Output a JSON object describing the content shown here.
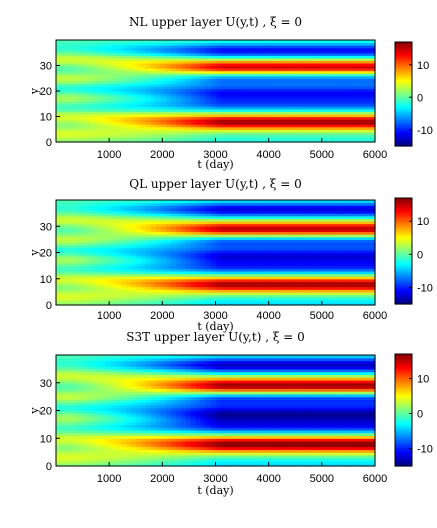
{
  "chart_data": [
    {
      "type": "heatmap",
      "title": "NL upper layer  U(y,t)  ,  ξ = 0",
      "xlabel": "t (day)",
      "ylabel": "y",
      "xlim": [
        0,
        6000
      ],
      "ylim": [
        0,
        40
      ],
      "xticks": [
        "1000",
        "2000",
        "3000",
        "4000",
        "5000",
        "6000"
      ],
      "yticks": [
        "0",
        "10",
        "20",
        "30"
      ],
      "clim": [
        -15,
        17
      ],
      "colorbar_ticks": [
        "10",
        "0",
        "-10"
      ],
      "colorbar_tick_values": [
        10,
        0,
        -10
      ],
      "jets_initial": [
        {
          "y": 3.5,
          "value": 6
        },
        {
          "y": 7,
          "value": -2
        },
        {
          "y": 10,
          "value": 7
        },
        {
          "y": 13.5,
          "value": -4
        },
        {
          "y": 17.5,
          "value": 5
        },
        {
          "y": 21,
          "value": -5
        },
        {
          "y": 25,
          "value": 6
        },
        {
          "y": 28.5,
          "value": -3
        },
        {
          "y": 32.5,
          "value": 6
        },
        {
          "y": 36.5,
          "value": -3
        }
      ],
      "jets_final": [
        {
          "y": 0.5,
          "value": -2
        },
        {
          "y": 8,
          "value": 16
        },
        {
          "y": 15,
          "value": -8
        },
        {
          "y": 19.5,
          "value": -10
        },
        {
          "y": 25,
          "value": -8
        },
        {
          "y": 29.5,
          "value": 15
        },
        {
          "y": 36,
          "value": -11
        }
      ]
    },
    {
      "type": "heatmap",
      "title": "QL upper layer  U(y,t)  ,  ξ = 0",
      "xlabel": "t (day)",
      "ylabel": "y",
      "xlim": [
        0,
        6000
      ],
      "ylim": [
        0,
        40
      ],
      "xticks": [
        "1000",
        "2000",
        "3000",
        "4000",
        "5000",
        "6000"
      ],
      "yticks": [
        "0",
        "10",
        "20",
        "30"
      ],
      "clim": [
        -15,
        17
      ],
      "colorbar_ticks": [
        "10",
        "0",
        "-10"
      ],
      "colorbar_tick_values": [
        10,
        0,
        -10
      ],
      "jets_initial": [
        {
          "y": 3.5,
          "value": 6
        },
        {
          "y": 7,
          "value": -2
        },
        {
          "y": 10,
          "value": 7
        },
        {
          "y": 13.5,
          "value": -4
        },
        {
          "y": 17.5,
          "value": 5
        },
        {
          "y": 21,
          "value": -5
        },
        {
          "y": 25,
          "value": 6
        },
        {
          "y": 28.5,
          "value": -3
        },
        {
          "y": 32.5,
          "value": 6
        },
        {
          "y": 36.5,
          "value": -3
        }
      ],
      "jets_final": [
        {
          "y": 0.5,
          "value": -4
        },
        {
          "y": 8,
          "value": 16
        },
        {
          "y": 14.5,
          "value": -9
        },
        {
          "y": 19,
          "value": -11
        },
        {
          "y": 24.5,
          "value": -9
        },
        {
          "y": 29,
          "value": 16
        },
        {
          "y": 36.5,
          "value": -12
        }
      ]
    },
    {
      "type": "heatmap",
      "title": "S3T upper layer  U(y,t)  ,  ξ = 0",
      "xlabel": "t (day)",
      "ylabel": "y",
      "xlim": [
        0,
        6000
      ],
      "ylim": [
        0,
        40
      ],
      "xticks": [
        "1000",
        "2000",
        "3000",
        "4000",
        "5000",
        "6000"
      ],
      "yticks": [
        "0",
        "10",
        "20",
        "30"
      ],
      "clim": [
        -15,
        17
      ],
      "colorbar_ticks": [
        "10",
        "0",
        "-10"
      ],
      "colorbar_tick_values": [
        10,
        0,
        -10
      ],
      "jets_initial": [
        {
          "y": 3.5,
          "value": 6
        },
        {
          "y": 7,
          "value": -2
        },
        {
          "y": 10,
          "value": 7
        },
        {
          "y": 13.5,
          "value": -4
        },
        {
          "y": 17.5,
          "value": 5
        },
        {
          "y": 21,
          "value": -5
        },
        {
          "y": 25,
          "value": 6
        },
        {
          "y": 28.5,
          "value": -3
        },
        {
          "y": 32.5,
          "value": 6
        },
        {
          "y": 36.5,
          "value": -3
        }
      ],
      "jets_final": [
        {
          "y": 0.5,
          "value": -4
        },
        {
          "y": 8,
          "value": 17
        },
        {
          "y": 14.5,
          "value": -10
        },
        {
          "y": 19,
          "value": -13
        },
        {
          "y": 24.5,
          "value": -10
        },
        {
          "y": 29,
          "value": 17
        },
        {
          "y": 36.5,
          "value": -13
        }
      ]
    }
  ]
}
